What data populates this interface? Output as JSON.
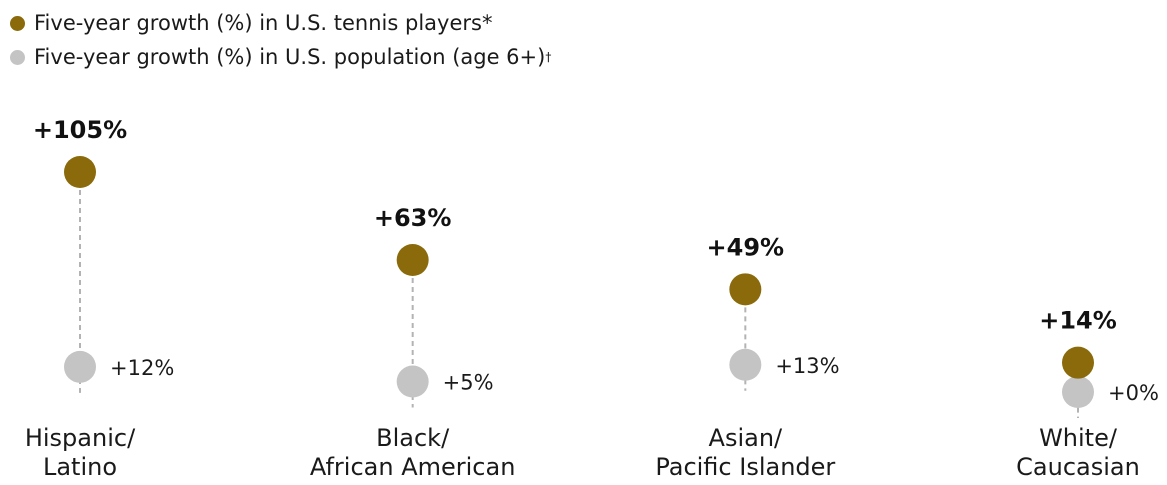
{
  "legend": {
    "players_label": "Five-year growth (%) in U.S. tennis players*",
    "population_label": "Five-year growth (%) in U.S. population (age 6+)",
    "population_footnote_mark": "†"
  },
  "colors": {
    "players": "#8a6a0a",
    "population": "#c4c4c4",
    "connector": "#b3b3b3"
  },
  "chart_data": {
    "type": "scatter",
    "categories": [
      [
        "Hispanic/",
        "Latino"
      ],
      [
        "Black/",
        "African American"
      ],
      [
        "Asian/",
        "Pacific Islander"
      ],
      [
        "White/",
        "Caucasian"
      ]
    ],
    "series": [
      {
        "name": "Five-year growth (%) in U.S. tennis players*",
        "values": [
          105,
          63,
          49,
          14
        ],
        "labels": [
          "+105%",
          "+63%",
          "+49%",
          "+14%"
        ]
      },
      {
        "name": "Five-year growth (%) in U.S. population (age 6+)†",
        "values": [
          12,
          5,
          13,
          0
        ],
        "labels": [
          "+12%",
          "+5%",
          "+13%",
          "+0%"
        ]
      }
    ],
    "ylim": [
      0,
      105
    ],
    "grid": false,
    "legend_position": "top-left"
  }
}
